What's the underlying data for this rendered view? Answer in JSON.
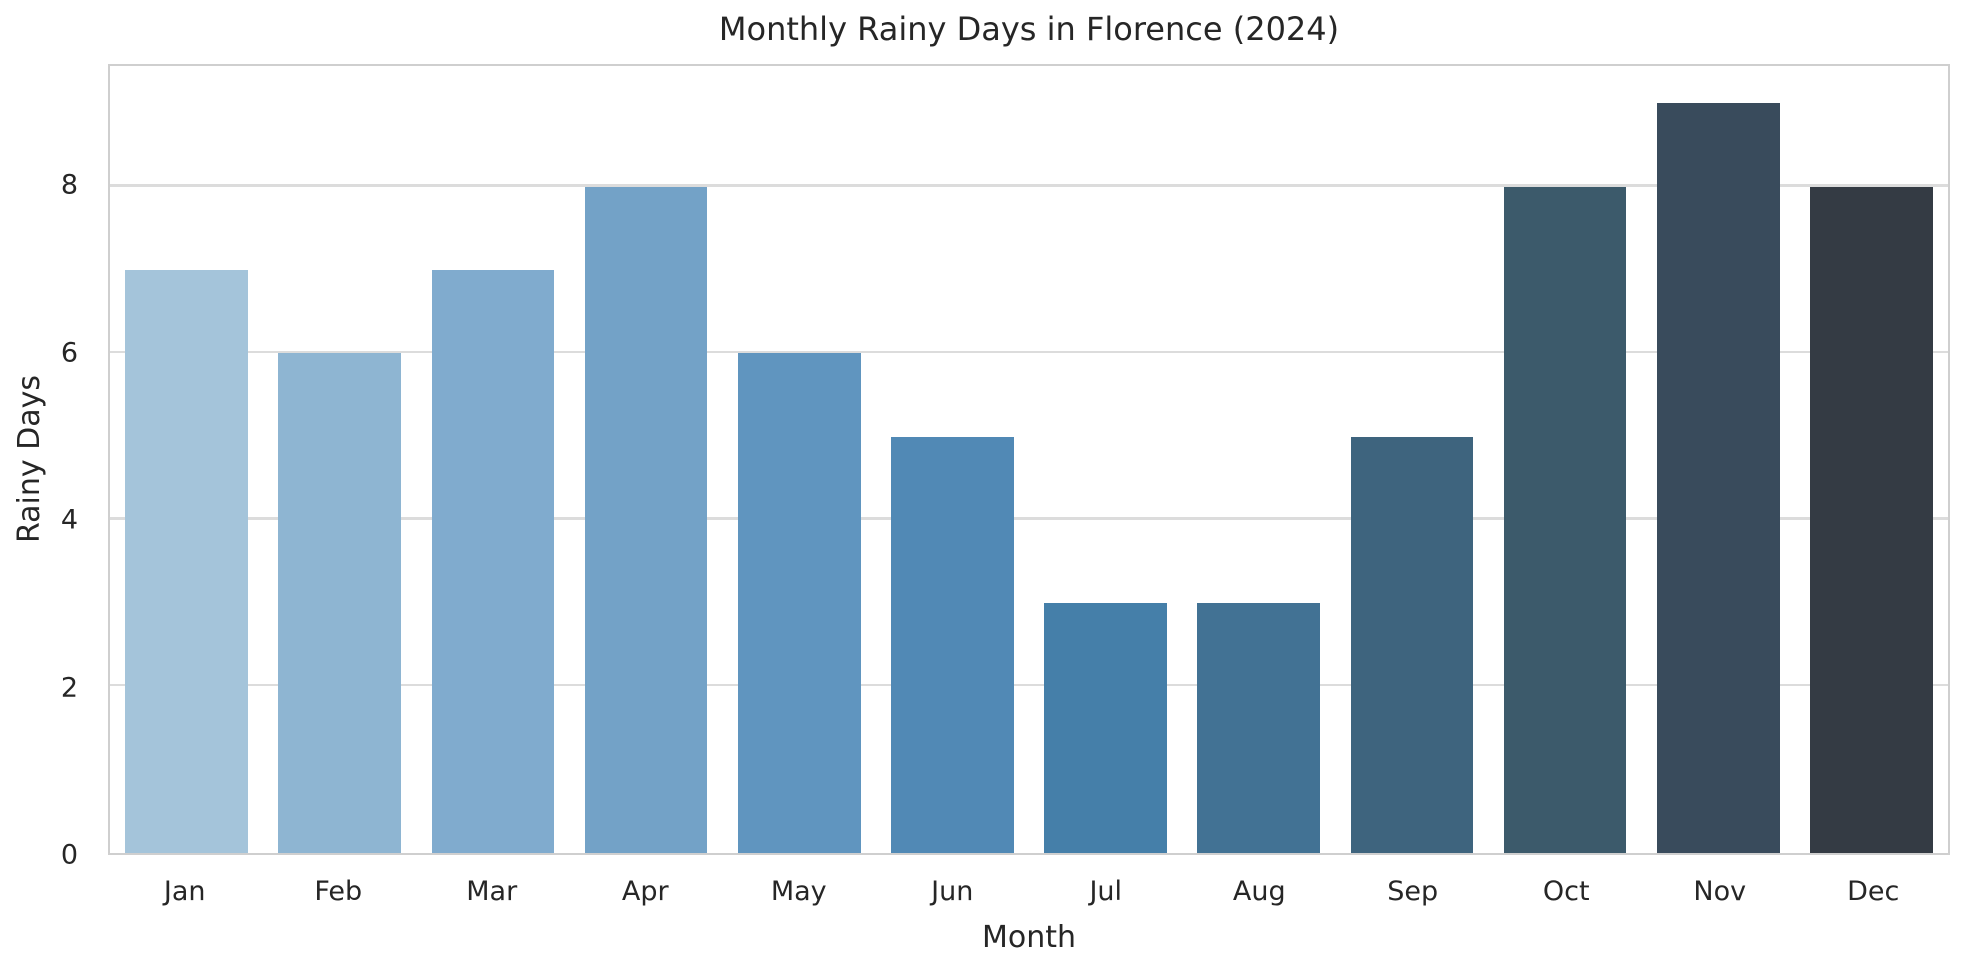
{
  "page": {
    "background": "#ffffff",
    "text_color": "#262626"
  },
  "chart_data": {
    "type": "bar",
    "title": "Monthly Rainy Days in Florence (2024)",
    "xlabel": "Month",
    "ylabel": "Rainy Days",
    "categories": [
      "Jan",
      "Feb",
      "Mar",
      "Apr",
      "May",
      "Jun",
      "Jul",
      "Aug",
      "Sep",
      "Oct",
      "Nov",
      "Dec"
    ],
    "values": [
      7,
      6,
      7,
      8,
      6,
      5,
      3,
      3,
      5,
      8,
      9,
      8
    ],
    "bar_colors": [
      "#a4c4da",
      "#8eb5d2",
      "#80abce",
      "#73a2c7",
      "#6095bf",
      "#5189b5",
      "#457fa9",
      "#427294",
      "#3e647e",
      "#3c5a6b",
      "#394b5c",
      "#343b44"
    ],
    "yticks": [
      0,
      2,
      4,
      6,
      8
    ],
    "ylim": [
      0,
      9.45
    ],
    "grid": "horizontal-only",
    "grid_color": "#dcdcdc",
    "spine_color": "#cfcfcf",
    "legend_position": "none",
    "bar_width_fraction": 0.8
  }
}
